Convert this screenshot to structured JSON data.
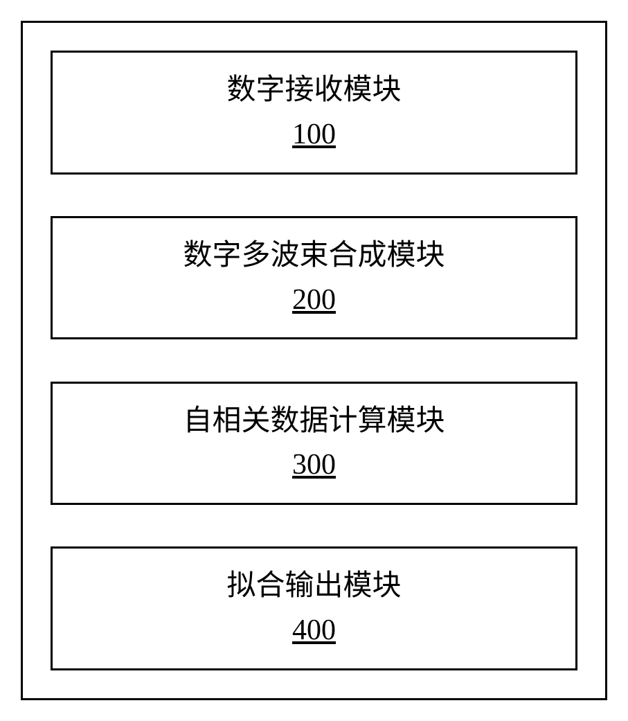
{
  "diagram": {
    "type": "block-diagram",
    "container_border_color": "#000000",
    "container_border_width": 3,
    "background_color": "#ffffff",
    "box_border_color": "#000000",
    "box_border_width": 3,
    "title_fontsize": 42,
    "number_fontsize": 42,
    "text_color": "#000000",
    "font_family": "SimSun",
    "number_underline": true,
    "modules": [
      {
        "title": "数字接收模块",
        "number": "100"
      },
      {
        "title": "数字多波束合成模块",
        "number": "200"
      },
      {
        "title": "自相关数据计算模块",
        "number": "300"
      },
      {
        "title": "拟合输出模块",
        "number": "400"
      }
    ]
  }
}
